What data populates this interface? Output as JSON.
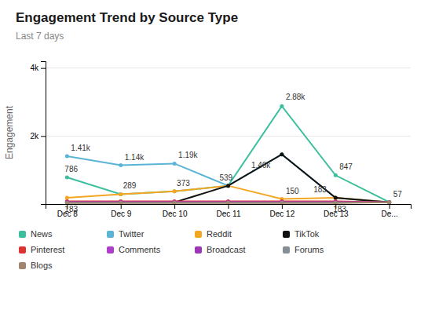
{
  "chart_data": {
    "type": "line",
    "title": "Engagement Trend by Source Type",
    "subtitle": "Last 7 days",
    "ylabel": "Engagement",
    "categories": [
      "Dec 8",
      "Dec 9",
      "Dec 10",
      "Dec 11",
      "Dec 12",
      "Dec 13",
      "De..."
    ],
    "series": [
      {
        "name": "News",
        "color": "#3dbf9e",
        "values": [
          786,
          289,
          373,
          539,
          2880,
          847,
          57
        ]
      },
      {
        "name": "Twitter",
        "color": "#5ab4d6",
        "values": [
          1410,
          1140,
          1190,
          539,
          1460,
          183,
          57
        ]
      },
      {
        "name": "Reddit",
        "color": "#f5a623",
        "values": [
          183,
          289,
          373,
          539,
          150,
          183,
          57
        ]
      },
      {
        "name": "TikTok",
        "color": "#111111",
        "values": [
          50,
          50,
          50,
          539,
          1460,
          183,
          50
        ]
      },
      {
        "name": "Pinterest",
        "color": "#e03131",
        "values": [
          80,
          80,
          80,
          80,
          80,
          80,
          50
        ]
      },
      {
        "name": "Comments",
        "color": "#ae3ec9",
        "values": [
          60,
          60,
          60,
          60,
          60,
          60,
          50
        ]
      },
      {
        "name": "Broadcast",
        "color": "#9c36b5",
        "values": [
          50,
          50,
          50,
          50,
          50,
          50,
          50
        ]
      },
      {
        "name": "Forums",
        "color": "#868e96",
        "values": [
          40,
          40,
          40,
          40,
          40,
          40,
          50
        ]
      },
      {
        "name": "Blogs",
        "color": "#a0856c",
        "values": [
          30,
          30,
          30,
          30,
          30,
          30,
          50
        ]
      }
    ],
    "ylim": [
      0,
      4200
    ],
    "yticks": [
      {
        "value": 2000,
        "label": "2k"
      },
      {
        "value": 4000,
        "label": "4k"
      }
    ],
    "grid": true,
    "legend": "bottom",
    "marker": "circle",
    "annotations": [
      {
        "text": "786",
        "x": "Dec 8",
        "y": 786
      },
      {
        "text": "289",
        "x": "Dec 9",
        "y": 289
      },
      {
        "text": "373",
        "x": "Dec 10",
        "y": 373
      },
      {
        "text": "539",
        "x": "Dec 11",
        "y": 539
      },
      {
        "text": "2.88k",
        "x": "Dec 12",
        "y": 2880
      },
      {
        "text": "847",
        "x": "Dec 13",
        "y": 847
      },
      {
        "text": "57",
        "x": "De...",
        "y": 57
      },
      {
        "text": "1.41k",
        "x": "Dec 8",
        "y": 1410
      },
      {
        "text": "1.14k",
        "x": "Dec 9",
        "y": 1140
      },
      {
        "text": "1.19k",
        "x": "Dec 10",
        "y": 1190
      },
      {
        "text": "1.46k",
        "x": "Dec 12",
        "y": 1460
      },
      {
        "text": "183",
        "x": "Dec 13",
        "y": 183
      },
      {
        "text": "183",
        "x": "Dec 8",
        "y": 183
      },
      {
        "text": "150",
        "x": "Dec 12",
        "y": 150
      },
      {
        "text": "183",
        "x": "Dec 13",
        "y": 183
      }
    ]
  }
}
